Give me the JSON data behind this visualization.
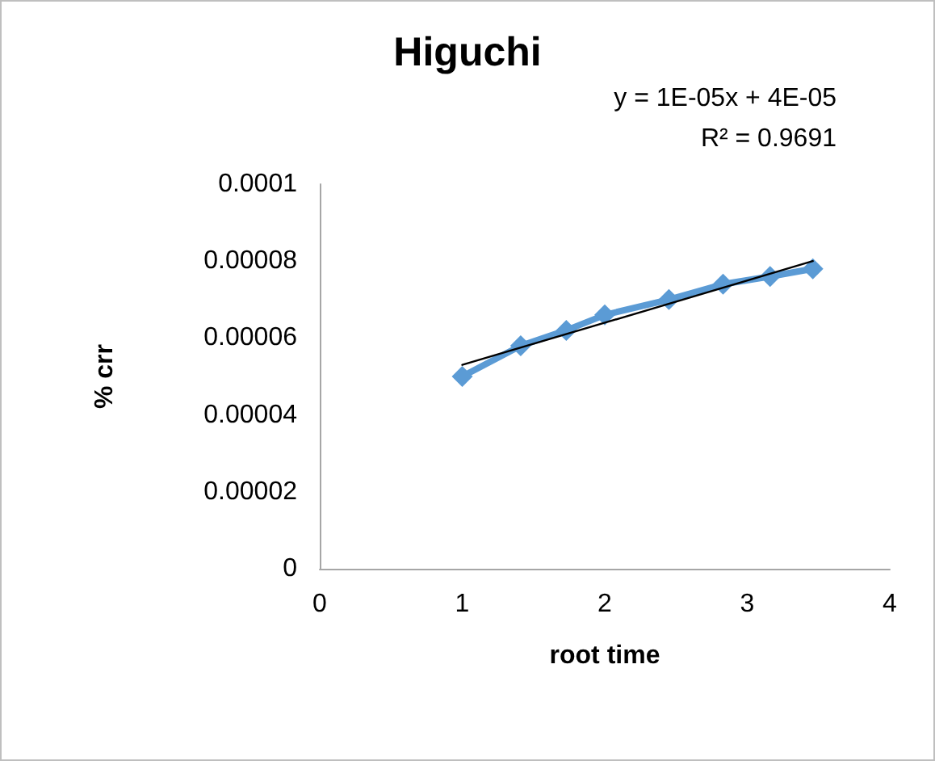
{
  "chart_data": {
    "type": "line",
    "title": "Higuchi",
    "xlabel": "root time",
    "ylabel": "% crr",
    "annotations": [
      "y = 1E-05x + 4E-05",
      "R² = 0.9691"
    ],
    "xlim": [
      0,
      4
    ],
    "xticks": [
      0,
      1,
      2,
      3,
      4
    ],
    "ylim": [
      0,
      0.0001
    ],
    "yticks": [
      0,
      {
        "value": 2e-05,
        "label": "0.00002"
      },
      {
        "value": 4e-05,
        "label": "0.00004"
      },
      {
        "value": 6e-05,
        "label": "0.00006"
      },
      {
        "value": 8e-05,
        "label": "0.00008"
      },
      0.0001
    ],
    "grid": false,
    "marker": "diamond",
    "series": [
      {
        "color": "#5b9bd5",
        "x": [
          1,
          1.41,
          1.73,
          2,
          2.45,
          2.83,
          3.16,
          3.46
        ],
        "values": [
          5e-05,
          5.8e-05,
          6.2e-05,
          6.6e-05,
          7e-05,
          7.4e-05,
          7.6e-05,
          7.8e-05
        ]
      },
      {
        "color": "#000000",
        "marker": "none",
        "x": [
          1,
          3.46
        ],
        "values": [
          5.3e-05,
          8e-05
        ]
      }
    ]
  }
}
